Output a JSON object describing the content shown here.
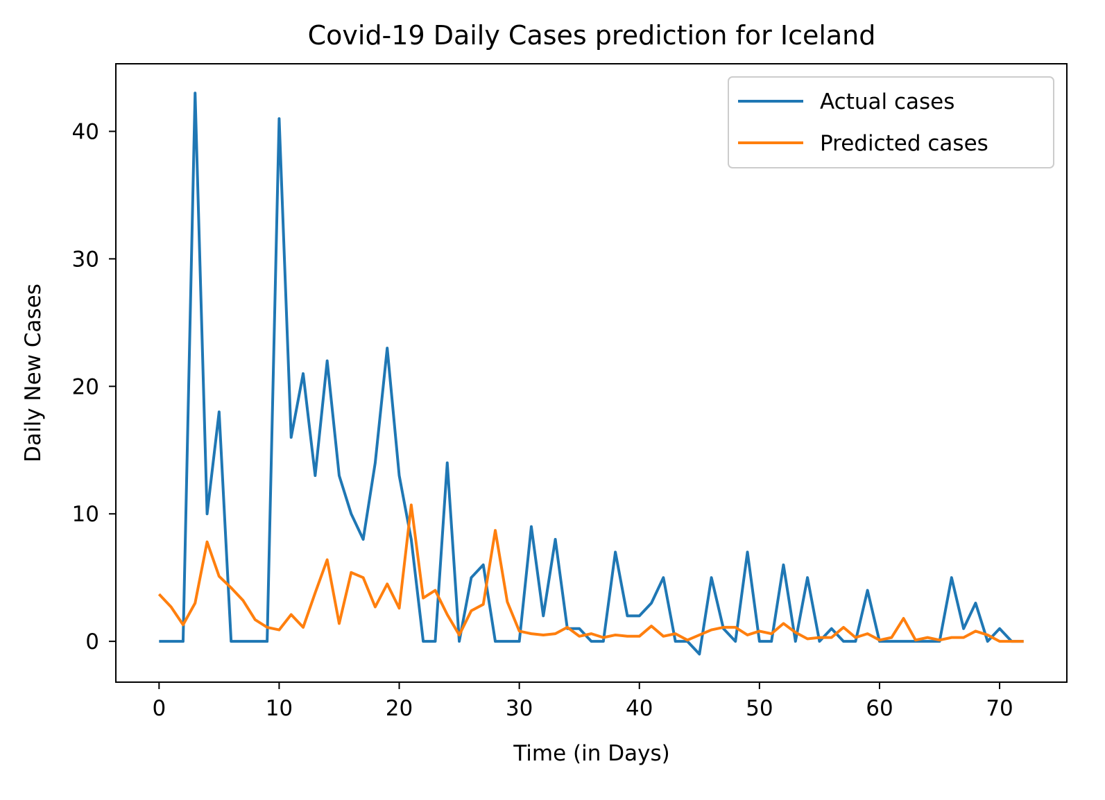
{
  "chart_data": {
    "type": "line",
    "title": "Covid-19 Daily Cases prediction for Iceland",
    "xlabel": "Time (in Days)",
    "ylabel": "Daily New Cases",
    "xlim": [
      -3.6,
      75.6
    ],
    "ylim": [
      -3.2,
      45.3
    ],
    "xticks": [
      0,
      10,
      20,
      30,
      40,
      50,
      60,
      70
    ],
    "yticks": [
      0,
      10,
      20,
      30,
      40
    ],
    "grid": false,
    "legend_position": "top-right",
    "series": [
      {
        "name": "Actual cases",
        "color": "#1f77b4",
        "values": [
          0,
          0,
          0,
          43,
          10,
          18,
          0,
          0,
          0,
          0,
          41,
          16,
          21,
          13,
          22,
          13,
          10,
          8,
          14,
          23,
          13,
          8,
          0,
          0,
          14,
          0,
          5,
          6,
          0,
          0,
          0,
          9,
          2,
          8,
          1,
          1,
          0,
          0,
          7,
          2,
          2,
          3,
          5,
          0,
          0,
          -1,
          5,
          1,
          0,
          7,
          0,
          0,
          6,
          0,
          5,
          0,
          1,
          0,
          0,
          4,
          0,
          0,
          0,
          0,
          0,
          0,
          5,
          1,
          3,
          0,
          1,
          0,
          0
        ]
      },
      {
        "name": "Predicted cases",
        "color": "#ff7f0e",
        "values": [
          3.7,
          2.7,
          1.3,
          3.0,
          7.8,
          5.1,
          4.2,
          3.2,
          1.7,
          1.1,
          0.9,
          2.1,
          1.1,
          3.8,
          6.4,
          1.4,
          5.4,
          5.0,
          2.7,
          4.5,
          2.6,
          10.7,
          3.4,
          4.0,
          2.1,
          0.5,
          2.4,
          2.9,
          8.7,
          3.1,
          0.8,
          0.6,
          0.5,
          0.6,
          1.1,
          0.4,
          0.6,
          0.3,
          0.5,
          0.4,
          0.4,
          1.2,
          0.4,
          0.6,
          0.1,
          0.5,
          0.9,
          1.1,
          1.1,
          0.5,
          0.8,
          0.6,
          1.4,
          0.7,
          0.2,
          0.3,
          0.3,
          1.1,
          0.3,
          0.6,
          0.1,
          0.3,
          1.8,
          0.1,
          0.3,
          0.1,
          0.3,
          0.3,
          0.8,
          0.5,
          0.0,
          0.0,
          0.0
        ]
      }
    ]
  }
}
